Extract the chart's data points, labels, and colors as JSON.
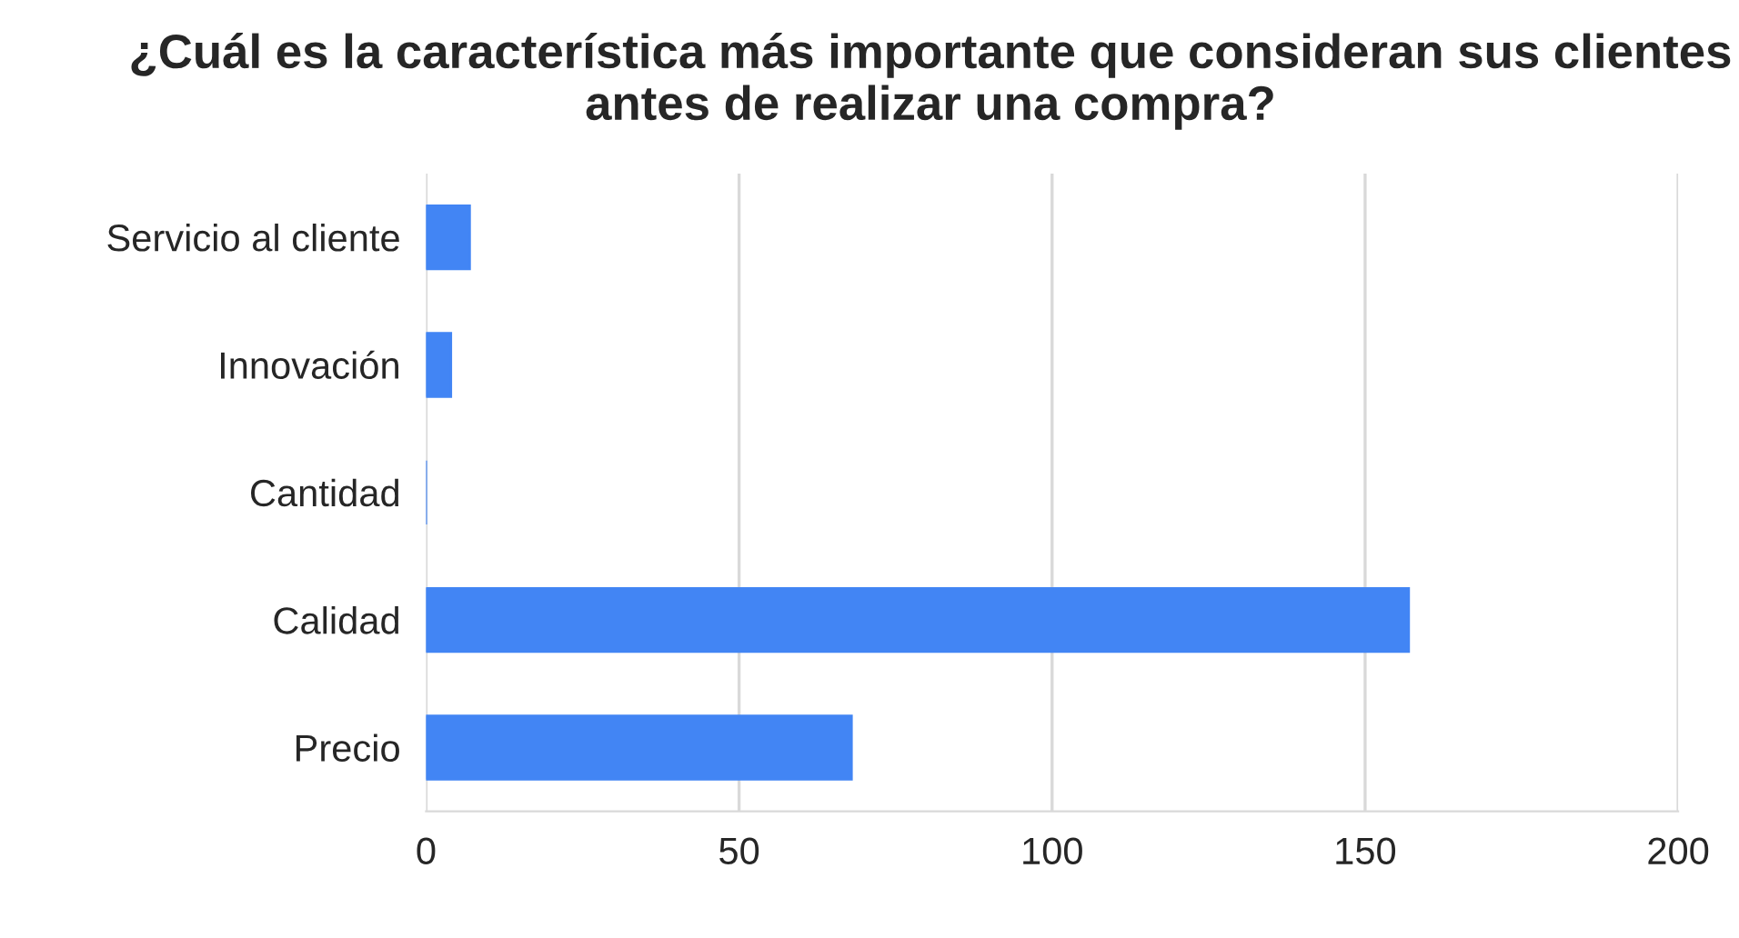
{
  "chart_data": {
    "type": "bar",
    "orientation": "horizontal",
    "title": "¿Cuál es la característica más importante que consideran sus clientes antes de realizar una compra?",
    "categories": [
      "Servicio al cliente",
      "Innovación",
      "Cantidad",
      "Calidad",
      "Precio"
    ],
    "values": [
      7,
      4,
      0,
      157,
      68
    ],
    "color": "#4285f4",
    "xlim": [
      0,
      200
    ],
    "xticks": [
      0,
      50,
      100,
      150,
      200
    ],
    "grid": "x",
    "legend": false
  }
}
